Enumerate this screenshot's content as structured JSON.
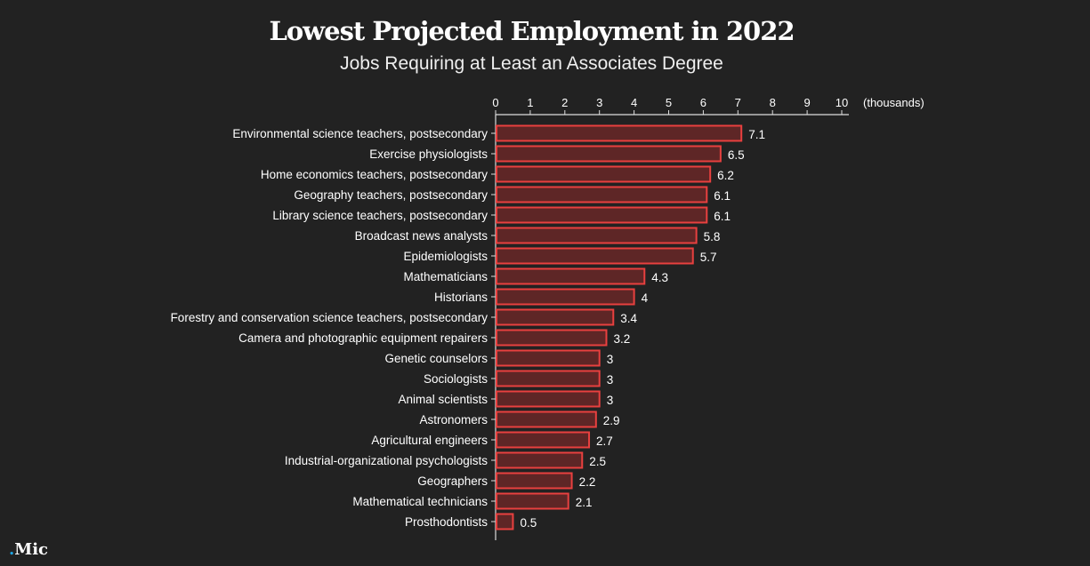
{
  "chart_data": {
    "type": "bar",
    "orientation": "horizontal",
    "title": "Lowest Projected Employment in 2022",
    "subtitle": "Jobs Requiring at Least an Associates Degree",
    "xlabel": "(thousands)",
    "xlim": [
      0,
      10
    ],
    "xticks": [
      0,
      1,
      2,
      3,
      4,
      5,
      6,
      7,
      8,
      9,
      10
    ],
    "grid": false,
    "categories": [
      "Environmental science teachers, postsecondary",
      "Exercise physiologists",
      "Home economics teachers, postsecondary",
      "Geography teachers, postsecondary",
      "Library science teachers, postsecondary",
      "Broadcast news analysts",
      "Epidemiologists",
      "Mathematicians",
      "Historians",
      "Forestry and conservation science teachers, postsecondary",
      "Camera and photographic equipment repairers",
      "Genetic counselors",
      "Sociologists",
      "Animal scientists",
      "Astronomers",
      "Agricultural engineers",
      "Industrial-organizational psychologists",
      "Geographers",
      "Mathematical technicians",
      "Prosthodontists"
    ],
    "values": [
      7.1,
      6.5,
      6.2,
      6.1,
      6.1,
      5.8,
      5.7,
      4.3,
      4,
      3.4,
      3.2,
      3,
      3,
      3,
      2.9,
      2.7,
      2.5,
      2.2,
      2.1,
      0.5
    ],
    "colors": {
      "bar_fill": "#5e2626",
      "bar_stroke": "#e8403f",
      "background": "#222222",
      "text": "#ffffff"
    }
  },
  "logo": {
    "dot": ".",
    "text": "Mic"
  }
}
